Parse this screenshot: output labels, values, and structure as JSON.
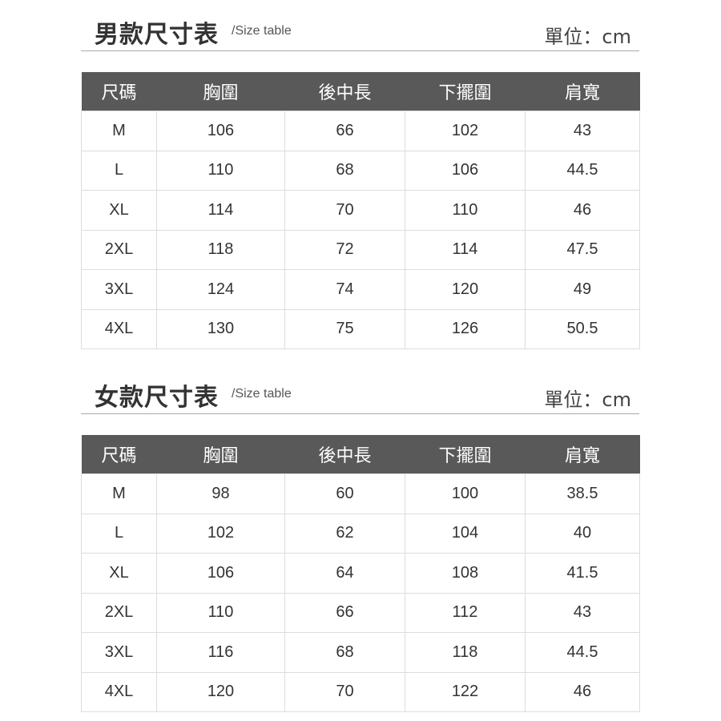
{
  "tables": [
    {
      "title": "男款尺寸表",
      "subtitle": "/Size table",
      "unit": "單位：cm",
      "headers": [
        "尺碼",
        "胸圍",
        "後中長",
        "下擺圍",
        "肩寬"
      ],
      "rows": [
        [
          "M",
          "106",
          "66",
          "102",
          "43"
        ],
        [
          "L",
          "110",
          "68",
          "106",
          "44.5"
        ],
        [
          "XL",
          "114",
          "70",
          "110",
          "46"
        ],
        [
          "2XL",
          "118",
          "72",
          "114",
          "47.5"
        ],
        [
          "3XL",
          "124",
          "74",
          "120",
          "49"
        ],
        [
          "4XL",
          "130",
          "75",
          "126",
          "50.5"
        ]
      ]
    },
    {
      "title": "女款尺寸表",
      "subtitle": "/Size table",
      "unit": "單位：cm",
      "headers": [
        "尺碼",
        "胸圍",
        "後中長",
        "下擺圍",
        "肩寬"
      ],
      "rows": [
        [
          "M",
          "98",
          "60",
          "100",
          "38.5"
        ],
        [
          "L",
          "102",
          "62",
          "104",
          "40"
        ],
        [
          "XL",
          "106",
          "64",
          "108",
          "41.5"
        ],
        [
          "2XL",
          "110",
          "66",
          "112",
          "43"
        ],
        [
          "3XL",
          "116",
          "68",
          "118",
          "44.5"
        ],
        [
          "4XL",
          "120",
          "70",
          "122",
          "46"
        ]
      ]
    }
  ]
}
